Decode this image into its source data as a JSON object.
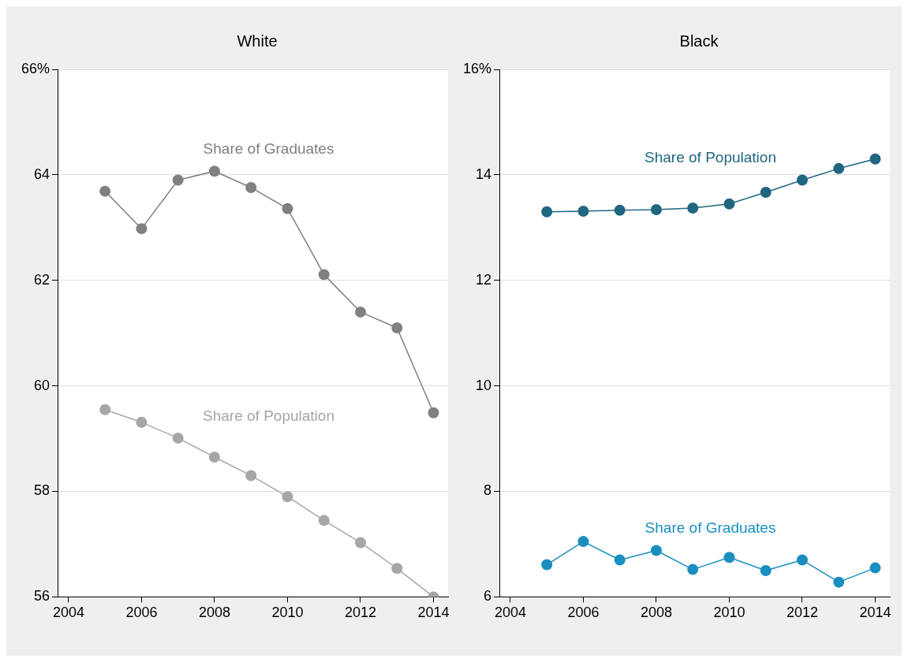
{
  "chart_data": [
    {
      "type": "line",
      "title": "White",
      "x": [
        2005,
        2006,
        2007,
        2008,
        2009,
        2010,
        2011,
        2012,
        2013,
        2014
      ],
      "series": [
        {
          "name": "Share of Graduates",
          "color": "#808080",
          "values": [
            63.69,
            62.98,
            63.9,
            64.07,
            63.76,
            63.36,
            62.11,
            61.4,
            61.1,
            59.49
          ]
        },
        {
          "name": "Share of Population",
          "color": "#a6a6a6",
          "values": [
            59.55,
            59.31,
            59.01,
            58.65,
            58.3,
            57.9,
            57.45,
            57.03,
            56.54,
            56.0
          ]
        }
      ],
      "xlim": [
        2003.7,
        2014.4
      ],
      "xticks": [
        2004,
        2006,
        2008,
        2010,
        2012,
        2014
      ],
      "ylim": [
        56,
        66
      ],
      "yticks": [
        56,
        58,
        60,
        62,
        64,
        {
          "value": 66,
          "label": "66%"
        }
      ],
      "grid": "y",
      "legend": false,
      "marker": "circle",
      "line_style": "solid"
    },
    {
      "type": "line",
      "title": "Black",
      "x": [
        2005,
        2006,
        2007,
        2008,
        2009,
        2010,
        2011,
        2012,
        2013,
        2014
      ],
      "series": [
        {
          "name": "Share of Population",
          "color": "#1f6680",
          "values": [
            13.3,
            13.31,
            13.33,
            13.34,
            13.37,
            13.45,
            13.67,
            13.9,
            14.12,
            14.3
          ]
        },
        {
          "name": "Share of Graduates",
          "color": "#1a8fbf",
          "values": [
            6.61,
            7.05,
            6.7,
            6.88,
            6.52,
            6.75,
            6.5,
            6.7,
            6.28,
            6.55
          ]
        }
      ],
      "xlim": [
        2003.7,
        2014.4
      ],
      "xticks": [
        2004,
        2006,
        2008,
        2010,
        2012,
        2014
      ],
      "ylim": [
        6,
        16
      ],
      "yticks": [
        6,
        8,
        10,
        12,
        14,
        {
          "value": 16,
          "label": "16%"
        }
      ],
      "grid": "y",
      "legend": false,
      "marker": "circle",
      "line_style": "solid"
    }
  ]
}
